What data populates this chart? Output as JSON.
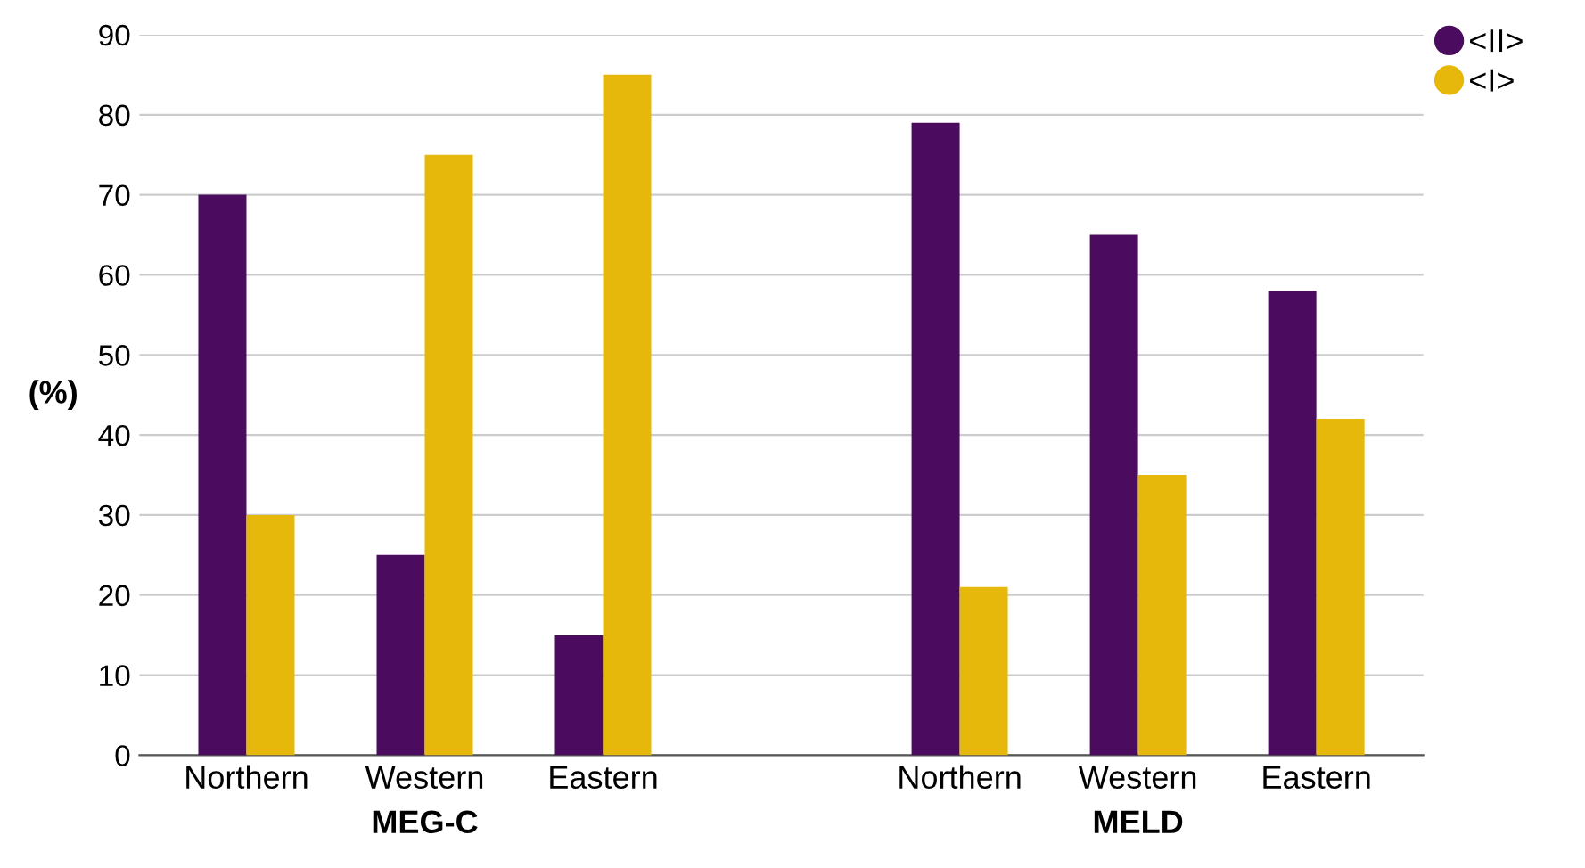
{
  "chart_data": {
    "type": "bar",
    "ylabel": "(%)",
    "categories": [
      "Northern",
      "Western",
      "Eastern",
      null,
      "Northern",
      "Western",
      "Eastern"
    ],
    "series": [
      {
        "name": "<II>",
        "color": "#4b0b5f",
        "values": [
          70,
          25,
          15,
          null,
          79,
          65,
          58
        ]
      },
      {
        "name": "<I>",
        "color": "#e6b80b",
        "values": [
          30,
          75,
          85,
          null,
          21,
          35,
          42
        ]
      }
    ],
    "ylim": [
      0,
      90
    ],
    "yticks": [
      0,
      10,
      20,
      30,
      40,
      50,
      60,
      70,
      80,
      90
    ],
    "grid": "y",
    "legend": "top right",
    "annotations": [
      "MEG-C",
      "MELD"
    ]
  }
}
